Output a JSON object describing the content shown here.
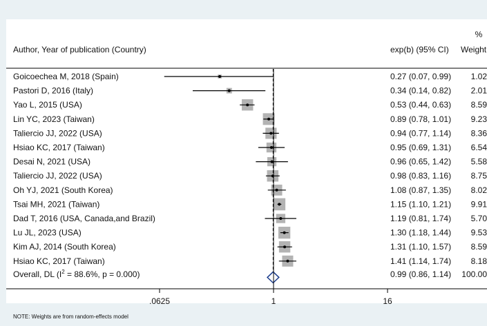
{
  "chart_data": {
    "type": "forest",
    "headers": {
      "study": "Author, Year of publication (Country)",
      "estimate": "exp(b) (95% CI)",
      "weight_top": "%",
      "weight": "Weight"
    },
    "x_scale": "log",
    "x_ticks": [
      {
        "value": 0.0625,
        "label": ".0625"
      },
      {
        "value": 1,
        "label": "1"
      },
      {
        "value": 16,
        "label": "16"
      }
    ],
    "studies": [
      {
        "label": "Goicoechea M, 2018 (Spain)",
        "est": 0.27,
        "lo": 0.07,
        "hi": 0.99,
        "ci_text": "0.27 (0.07, 0.99)",
        "weight": 1.02,
        "weight_text": "1.02"
      },
      {
        "label": "Pastori D, 2016 (Italy)",
        "est": 0.34,
        "lo": 0.14,
        "hi": 0.82,
        "ci_text": "0.34 (0.14, 0.82)",
        "weight": 2.01,
        "weight_text": "2.01"
      },
      {
        "label": "Yao L, 2015 (USA)",
        "est": 0.53,
        "lo": 0.44,
        "hi": 0.63,
        "ci_text": "0.53 (0.44, 0.63)",
        "weight": 8.59,
        "weight_text": "8.59"
      },
      {
        "label": "Lin YC, 2023 (Taiwan)",
        "est": 0.89,
        "lo": 0.78,
        "hi": 1.01,
        "ci_text": "0.89 (0.78, 1.01)",
        "weight": 9.23,
        "weight_text": "9.23"
      },
      {
        "label": "Taliercio JJ, 2022 (USA)",
        "est": 0.94,
        "lo": 0.77,
        "hi": 1.14,
        "ci_text": "0.94 (0.77, 1.14)",
        "weight": 8.36,
        "weight_text": "8.36"
      },
      {
        "label": "Hsiao KC, 2017 (Taiwan)",
        "est": 0.95,
        "lo": 0.69,
        "hi": 1.31,
        "ci_text": "0.95 (0.69, 1.31)",
        "weight": 6.54,
        "weight_text": "6.54"
      },
      {
        "label": "Desai N, 2021 (USA)",
        "est": 0.96,
        "lo": 0.65,
        "hi": 1.42,
        "ci_text": "0.96 (0.65, 1.42)",
        "weight": 5.58,
        "weight_text": "5.58"
      },
      {
        "label": "Taliercio JJ, 2022 (USA)",
        "est": 0.98,
        "lo": 0.83,
        "hi": 1.16,
        "ci_text": "0.98 (0.83, 1.16)",
        "weight": 8.75,
        "weight_text": "8.75"
      },
      {
        "label": "Oh YJ, 2021 (South Korea)",
        "est": 1.08,
        "lo": 0.87,
        "hi": 1.35,
        "ci_text": "1.08 (0.87, 1.35)",
        "weight": 8.02,
        "weight_text": "8.02"
      },
      {
        "label": "Tsai MH, 2021 (Taiwan)",
        "est": 1.15,
        "lo": 1.1,
        "hi": 1.21,
        "ci_text": "1.15 (1.10, 1.21)",
        "weight": 9.91,
        "weight_text": "9.91"
      },
      {
        "label": "Dad T, 2016 (USA, Canada,and Brazil)",
        "est": 1.19,
        "lo": 0.81,
        "hi": 1.74,
        "ci_text": "1.19 (0.81, 1.74)",
        "weight": 5.7,
        "weight_text": "5.70"
      },
      {
        "label": "Lu JL, 2023 (USA)",
        "est": 1.3,
        "lo": 1.18,
        "hi": 1.44,
        "ci_text": "1.30 (1.18, 1.44)",
        "weight": 9.53,
        "weight_text": "9.53"
      },
      {
        "label": "Kim AJ, 2014 (South Korea)",
        "est": 1.31,
        "lo": 1.1,
        "hi": 1.57,
        "ci_text": "1.31 (1.10, 1.57)",
        "weight": 8.59,
        "weight_text": "8.59"
      },
      {
        "label": "Hsiao KC, 2017 (Taiwan)",
        "est": 1.41,
        "lo": 1.14,
        "hi": 1.74,
        "ci_text": "1.41 (1.14, 1.74)",
        "weight": 8.18,
        "weight_text": "8.18"
      }
    ],
    "overall": {
      "label_prefix": "Overall, DL (I",
      "label_sup": "2",
      "label_suffix": " = 88.6%, p = 0.000)",
      "est": 0.99,
      "lo": 0.86,
      "hi": 1.14,
      "ci_text": "0.99 (0.86, 1.14)",
      "weight_text": "100.00"
    },
    "note": "NOTE: Weights are from random-effects model",
    "colors": {
      "outer_background": "#eaf1f4",
      "plot_background": "#ffffff",
      "weight_box": "#b3b3b3",
      "diamond": "#1a3c8c",
      "line": "#000000"
    }
  }
}
